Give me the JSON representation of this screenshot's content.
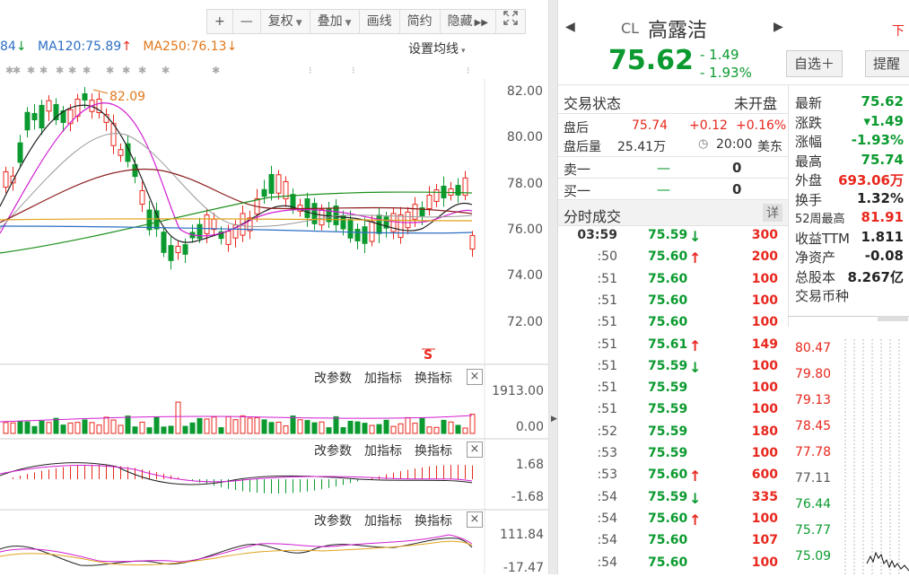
{
  "toolbar": {
    "plus": "+",
    "minus": "—",
    "fuquan": "复权",
    "diejia": "叠加",
    "huaxian": "画线",
    "jianyue": "简约",
    "yincang": "隐藏",
    "expand_icon": "expand-icon"
  },
  "ma_legend": {
    "partial": "84",
    "partial_arrow": "↓",
    "ma120": "MA120:75.89",
    "ma120_arrow": "↑",
    "ma250": "MA250:76.13",
    "ma250_arrow": "↓",
    "setting": "设置均线"
  },
  "main_chart": {
    "y_ticks": [
      "82.00",
      "80.00",
      "78.00",
      "76.00",
      "74.00",
      "72.00"
    ],
    "high_label": "82.09",
    "s_marker": "S",
    "colors": {
      "up": "#e8271d",
      "down": "#0b9a2f"
    }
  },
  "volume_panel": {
    "btn_params": "改参数",
    "btn_add": "加指标",
    "btn_swap": "换指标",
    "close": "×",
    "y_ticks": [
      "1913.00",
      "0.00"
    ]
  },
  "macd_panel": {
    "btn_params": "改参数",
    "btn_add": "加指标",
    "btn_swap": "换指标",
    "close": "×",
    "y_ticks": [
      "1.68",
      "-1.68"
    ]
  },
  "kdj_panel": {
    "btn_params": "改参数",
    "btn_add": "加指标",
    "btn_swap": "换指标",
    "close": "×",
    "y_ticks": [
      "111.84",
      "-17.47"
    ]
  },
  "quote": {
    "code": "CL",
    "name": "高露洁",
    "price": "75.62",
    "change": "- 1.49",
    "change_pct": "- 1.93%",
    "add_watch": "自选＋",
    "alert": "提醒",
    "partial": "下"
  },
  "trade_status": {
    "label": "交易状态",
    "value": "未开盘"
  },
  "after_hours": {
    "label": "盘后",
    "price": "75.74",
    "change": "+0.12",
    "pct": "+0.16%",
    "vol_label": "盘后量",
    "vol": "25.41万",
    "time": "20:00",
    "tz": "美东"
  },
  "orderbook": {
    "sell_label": "卖一",
    "sell_price": "—",
    "sell_vol": "0",
    "buy_label": "买一",
    "buy_price": "—",
    "buy_vol": "0"
  },
  "ticks": {
    "title": "分时成交",
    "detail": "详",
    "rows": [
      {
        "time": "03:59",
        "price": "75.59",
        "dir": "down",
        "vol": "300"
      },
      {
        "time": ":50",
        "price": "75.60",
        "dir": "up",
        "vol": "200"
      },
      {
        "time": ":51",
        "price": "75.60",
        "dir": "",
        "vol": "100"
      },
      {
        "time": ":51",
        "price": "75.60",
        "dir": "",
        "vol": "100"
      },
      {
        "time": ":51",
        "price": "75.60",
        "dir": "",
        "vol": "100"
      },
      {
        "time": ":51",
        "price": "75.61",
        "dir": "up",
        "vol": "149"
      },
      {
        "time": ":51",
        "price": "75.59",
        "dir": "down",
        "vol": "100"
      },
      {
        "time": ":51",
        "price": "75.59",
        "dir": "",
        "vol": "100"
      },
      {
        "time": ":51",
        "price": "75.59",
        "dir": "",
        "vol": "100"
      },
      {
        "time": ":52",
        "price": "75.59",
        "dir": "",
        "vol": "180"
      },
      {
        "time": ":53",
        "price": "75.59",
        "dir": "",
        "vol": "100"
      },
      {
        "time": ":53",
        "price": "75.60",
        "dir": "up",
        "vol": "600"
      },
      {
        "time": ":54",
        "price": "75.59",
        "dir": "down",
        "vol": "335"
      },
      {
        "time": ":54",
        "price": "75.60",
        "dir": "up",
        "vol": "100"
      },
      {
        "time": ":54",
        "price": "75.60",
        "dir": "",
        "vol": "107"
      },
      {
        "time": ":54",
        "price": "75.60",
        "dir": "",
        "vol": "100"
      }
    ]
  },
  "stats": [
    {
      "label": "最新",
      "value": "75.62",
      "color": "green"
    },
    {
      "label": "涨跌",
      "value": "▾1.49",
      "color": "green"
    },
    {
      "label": "涨幅",
      "value": "-1.93%",
      "color": "green"
    },
    {
      "label": "最高",
      "value": "75.74",
      "color": "green"
    },
    {
      "label": "外盘",
      "value": "693.06万",
      "color": "red"
    },
    {
      "label": "换手",
      "value": "1.32%",
      "color": "black"
    },
    {
      "label": "52周最高",
      "value": "81.91",
      "color": "red"
    },
    {
      "label": "收益TTM",
      "value": "1.811",
      "color": "black"
    },
    {
      "label": "净资产",
      "value": "-0.08",
      "color": "black"
    },
    {
      "label": "总股本",
      "value": "8.267亿",
      "color": "black"
    },
    {
      "label": "交易币种",
      "value": "",
      "color": "black"
    }
  ],
  "mini_chart": {
    "y_ticks": [
      "80.47",
      "79.80",
      "79.13",
      "78.45",
      "77.78",
      "77.11",
      "76.44",
      "75.77",
      "75.09"
    ]
  }
}
